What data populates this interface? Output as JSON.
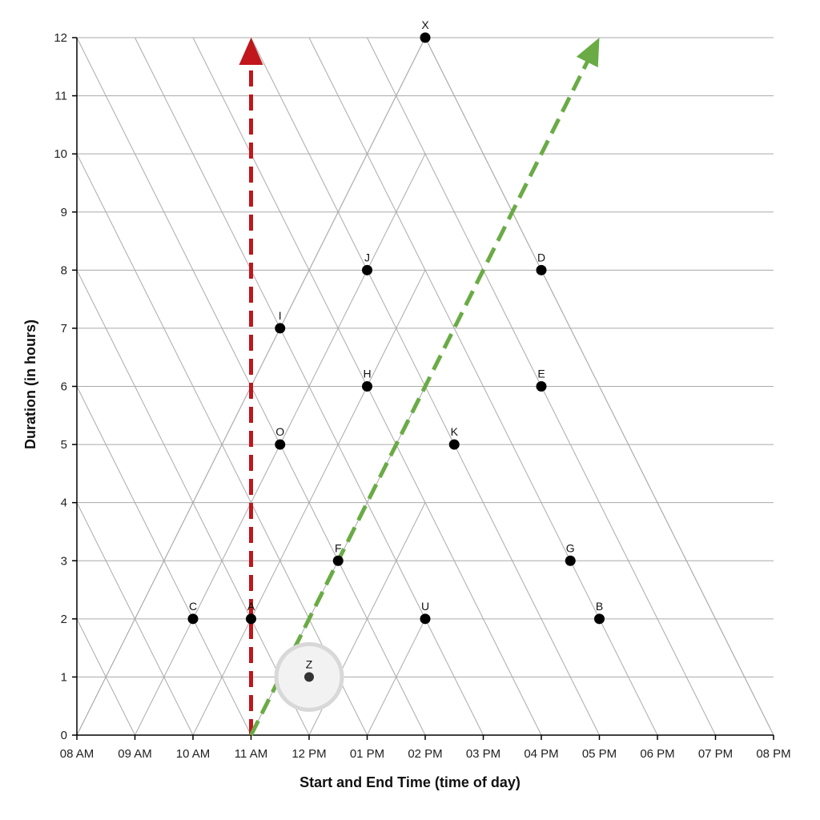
{
  "chart_data": {
    "type": "scatter",
    "title": "",
    "xlabel": "Start and End Time (time of day)",
    "ylabel": "Duration (in hours)",
    "x_ticks": [
      "08 AM",
      "09 AM",
      "10 AM",
      "11 AM",
      "12 PM",
      "01 PM",
      "02 PM",
      "03 PM",
      "04 PM",
      "05 PM",
      "06 PM",
      "07 PM",
      "08 PM"
    ],
    "x_range": [
      8,
      20
    ],
    "ylim": [
      0,
      12
    ],
    "y_ticks": [
      0,
      1,
      2,
      3,
      4,
      5,
      6,
      7,
      8,
      9,
      10,
      11,
      12
    ],
    "grid": "triangular",
    "points": [
      {
        "label": "X",
        "x": 14,
        "y": 12
      },
      {
        "label": "J",
        "x": 13,
        "y": 8
      },
      {
        "label": "D",
        "x": 16,
        "y": 8
      },
      {
        "label": "I",
        "x": 11.5,
        "y": 7
      },
      {
        "label": "H",
        "x": 13,
        "y": 6
      },
      {
        "label": "E",
        "x": 16,
        "y": 6
      },
      {
        "label": "O",
        "x": 11.5,
        "y": 5
      },
      {
        "label": "K",
        "x": 14.5,
        "y": 5
      },
      {
        "label": "F",
        "x": 12.5,
        "y": 3
      },
      {
        "label": "G",
        "x": 16.5,
        "y": 3
      },
      {
        "label": "C",
        "x": 10,
        "y": 2
      },
      {
        "label": "A",
        "x": 11,
        "y": 2
      },
      {
        "label": "U",
        "x": 14,
        "y": 2
      },
      {
        "label": "B",
        "x": 17,
        "y": 2
      },
      {
        "label": "Z",
        "x": 12,
        "y": 1,
        "highlight": true
      }
    ],
    "annotations": [
      {
        "type": "arrow",
        "color": "#c0161c",
        "from": [
          11,
          0
        ],
        "to": [
          11,
          12
        ],
        "style": "dashed"
      },
      {
        "type": "arrow",
        "color": "#6aab45",
        "from": [
          11,
          0
        ],
        "to": [
          17,
          12
        ],
        "style": "dashed"
      }
    ],
    "colors": {
      "point": "#000000",
      "grid": "#aaaaaa",
      "highlight_ring": "#d8d8d8",
      "highlight_fill": "#f2f2f2",
      "highlight_point": "#333333"
    }
  }
}
